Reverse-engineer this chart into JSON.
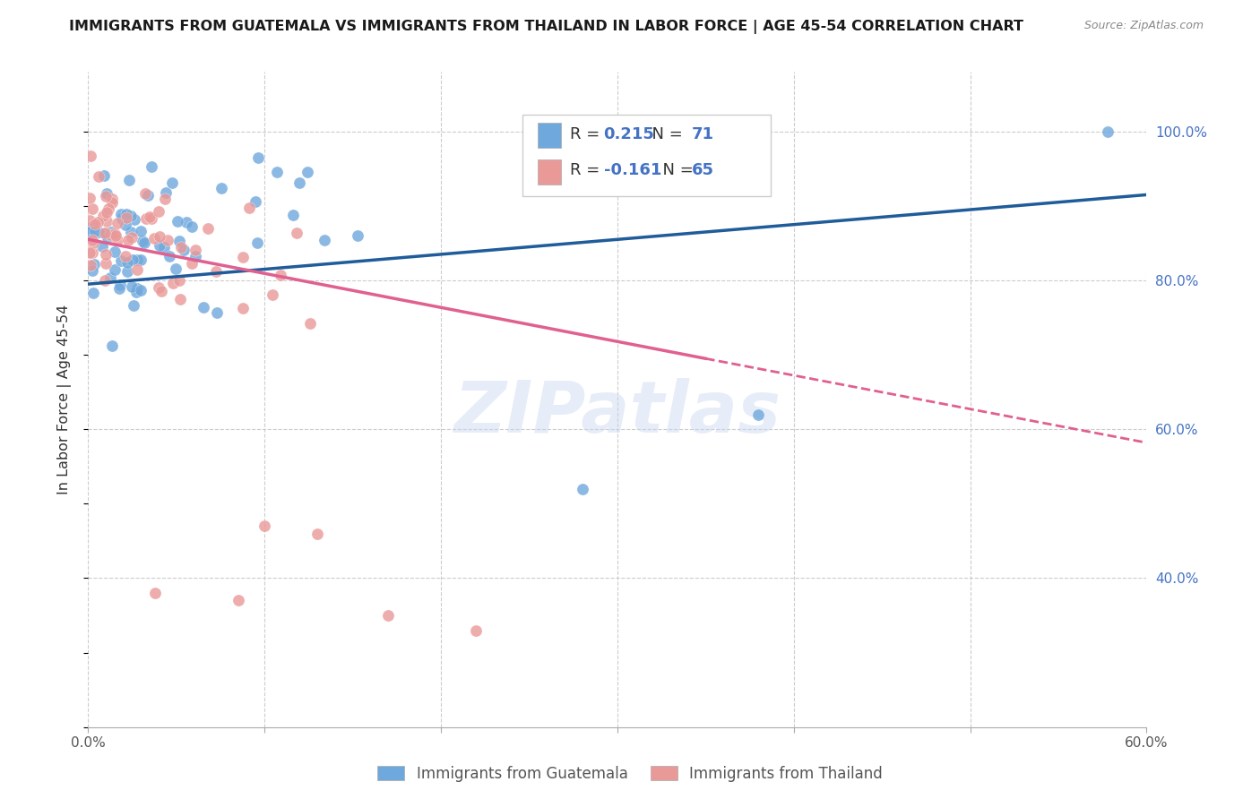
{
  "title": "IMMIGRANTS FROM GUATEMALA VS IMMIGRANTS FROM THAILAND IN LABOR FORCE | AGE 45-54 CORRELATION CHART",
  "source": "Source: ZipAtlas.com",
  "ylabel": "In Labor Force | Age 45-54",
  "xmin": 0.0,
  "xmax": 0.6,
  "ymin": 0.2,
  "ymax": 1.08,
  "x_tick_positions": [
    0.0,
    0.1,
    0.2,
    0.3,
    0.4,
    0.5,
    0.6
  ],
  "x_tick_labels": [
    "0.0%",
    "",
    "",
    "",
    "",
    "",
    "60.0%"
  ],
  "y_ticks_right": [
    0.4,
    0.6,
    0.8,
    1.0
  ],
  "y_tick_labels_right": [
    "40.0%",
    "60.0%",
    "80.0%",
    "100.0%"
  ],
  "R_guatemala": 0.215,
  "N_guatemala": 71,
  "R_thailand": -0.161,
  "N_thailand": 65,
  "color_guatemala": "#6fa8dc",
  "color_thailand": "#ea9999",
  "trendline_guatemala_color": "#1f5c99",
  "trendline_thailand_color": "#e06090",
  "watermark": "ZIPatlas",
  "legend_label_guatemala": "Immigrants from Guatemala",
  "legend_label_thailand": "Immigrants from Thailand",
  "trendline_g_x0": 0.0,
  "trendline_g_y0": 0.795,
  "trendline_g_x1": 0.6,
  "trendline_g_y1": 0.915,
  "trendline_t_x0": 0.0,
  "trendline_t_y0": 0.855,
  "trendline_t_x1_solid": 0.35,
  "trendline_t_y1_solid": 0.695,
  "trendline_t_x1_dash": 0.6,
  "trendline_t_y1_dash": 0.582
}
